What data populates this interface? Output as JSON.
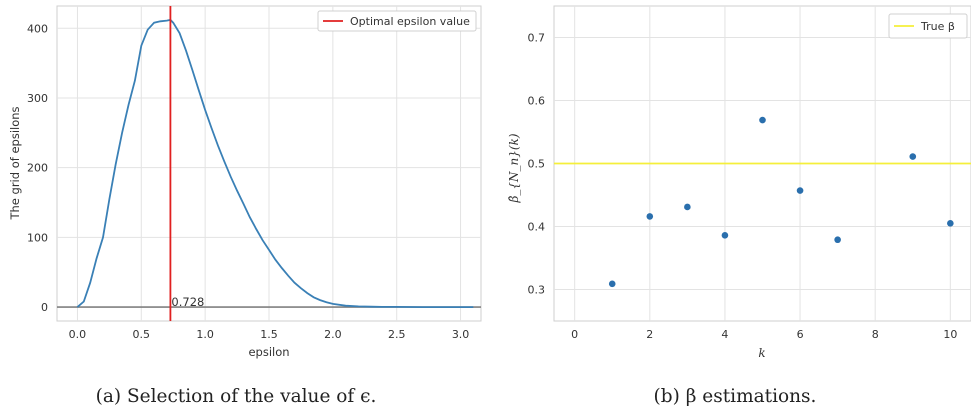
{
  "chart_data": [
    {
      "type": "line",
      "xlabel": "epsilon",
      "ylabel": "The grid of epsilons",
      "xlim": [
        -0.16,
        3.16
      ],
      "ylim": [
        -20,
        432
      ],
      "xticks": [
        0.0,
        0.5,
        1.0,
        1.5,
        2.0,
        2.5,
        3.0
      ],
      "xtick_labels": [
        "0.0",
        "0.5",
        "1.0",
        "1.5",
        "2.0",
        "2.5",
        "3.0"
      ],
      "yticks": [
        0,
        100,
        200,
        300,
        400
      ],
      "ytick_labels": [
        "0",
        "100",
        "200",
        "300",
        "400"
      ],
      "grid": true,
      "legend_position": "top-right",
      "series": [
        {
          "color": "#3a80b6",
          "x": [
            0.0,
            0.05,
            0.1,
            0.15,
            0.2,
            0.25,
            0.3,
            0.35,
            0.4,
            0.45,
            0.5,
            0.55,
            0.6,
            0.65,
            0.7,
            0.728,
            0.75,
            0.8,
            0.85,
            0.9,
            0.95,
            1.0,
            1.05,
            1.1,
            1.15,
            1.2,
            1.25,
            1.3,
            1.35,
            1.4,
            1.45,
            1.5,
            1.55,
            1.6,
            1.65,
            1.7,
            1.75,
            1.8,
            1.85,
            1.9,
            1.95,
            2.0,
            2.1,
            2.2,
            2.3,
            2.4,
            2.5,
            2.6,
            2.7,
            2.8,
            2.9,
            3.0,
            3.1
          ],
          "y": [
            0,
            8,
            35,
            70,
            100,
            155,
            205,
            250,
            290,
            325,
            375,
            398,
            408,
            410,
            411,
            412,
            408,
            393,
            368,
            340,
            311,
            283,
            257,
            232,
            209,
            187,
            167,
            148,
            129,
            112,
            96,
            82,
            68,
            56,
            45,
            35,
            27,
            20,
            14,
            10,
            7,
            4.5,
            2,
            1,
            0.5,
            0.3,
            0.2,
            0.1,
            0,
            0,
            0,
            0,
            0
          ]
        }
      ],
      "zero_line": {
        "y": 0,
        "color": "#808080"
      },
      "optimal_line": {
        "x": 0.728,
        "color": "#e02020",
        "legend": "Optimal epsilon value"
      },
      "annotation": {
        "text": "0.728",
        "x": 0.728,
        "y": 0
      }
    },
    {
      "type": "scatter",
      "xlabel": "k",
      "ylabel": "β̂_{N_n}(k)",
      "xlim": [
        -0.55,
        10.55
      ],
      "ylim": [
        0.25,
        0.75
      ],
      "xticks": [
        0,
        2,
        4,
        6,
        8,
        10
      ],
      "xtick_labels": [
        "0",
        "2",
        "4",
        "6",
        "8",
        "10"
      ],
      "yticks": [
        0.3,
        0.4,
        0.5,
        0.6,
        0.7
      ],
      "ytick_labels": [
        "0.3",
        "0.4",
        "0.5",
        "0.6",
        "0.7"
      ],
      "grid": true,
      "legend_position": "top-right",
      "series": [
        {
          "color": "#2a6fad",
          "x": [
            1,
            2,
            3,
            4,
            5,
            6,
            7,
            9,
            10
          ],
          "y": [
            0.309,
            0.416,
            0.431,
            0.386,
            0.569,
            0.457,
            0.379,
            0.511,
            0.405
          ]
        }
      ],
      "true_line": {
        "y": 0.5,
        "color": "#f5ef3a",
        "legend": "True β"
      }
    }
  ],
  "captions": {
    "a": "(a) Selection of the value of ϵ.",
    "b": "(b) β estimations."
  }
}
